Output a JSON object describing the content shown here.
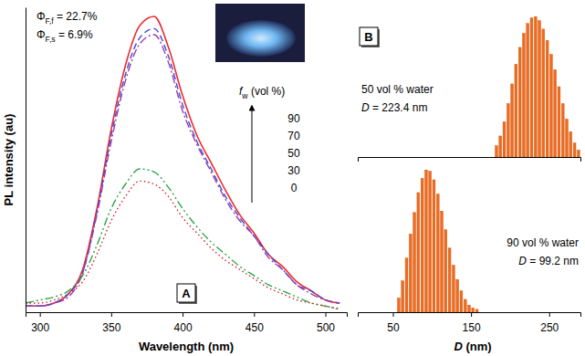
{
  "chart_data": [
    {
      "type": "line",
      "title": "A",
      "x_label": "Wavelength (nm)",
      "y_label": "PL intensity (au)",
      "x": [
        290,
        300,
        310,
        320,
        330,
        340,
        350,
        360,
        370,
        380,
        390,
        400,
        410,
        420,
        430,
        440,
        450,
        460,
        470,
        480,
        490,
        500,
        510
      ],
      "xlim": [
        290,
        515
      ],
      "xticks": [
        300,
        350,
        400,
        450,
        500
      ],
      "ylim": [
        0,
        1
      ],
      "tick_labels": "x",
      "legend": "right",
      "legend_title": {
        "main": "f",
        "sub": "w",
        "text": " (vol %)"
      },
      "annotations": [
        {
          "main": "Φ",
          "sub": "F,f",
          "text": " = 22.7%"
        },
        {
          "main": "Φ",
          "sub": "F,s",
          "text": " =  6.9%"
        }
      ],
      "series": [
        {
          "name": "90",
          "color": "#f0282d",
          "line_style": "solid",
          "values": [
            0.02,
            0.02,
            0.03,
            0.06,
            0.14,
            0.34,
            0.6,
            0.81,
            0.94,
            0.97,
            0.87,
            0.71,
            0.58,
            0.49,
            0.4,
            0.32,
            0.26,
            0.19,
            0.15,
            0.1,
            0.07,
            0.04,
            0.03
          ]
        },
        {
          "name": "70",
          "color": "#3a4fd0",
          "line_style": "dashed",
          "values": [
            0.02,
            0.02,
            0.03,
            0.06,
            0.13,
            0.33,
            0.58,
            0.78,
            0.9,
            0.93,
            0.84,
            0.68,
            0.56,
            0.47,
            0.38,
            0.31,
            0.25,
            0.19,
            0.14,
            0.09,
            0.07,
            0.04,
            0.03
          ]
        },
        {
          "name": "50",
          "color": "#9a3bb0",
          "line_style": "dashdot",
          "values": [
            0.02,
            0.02,
            0.03,
            0.05,
            0.13,
            0.32,
            0.56,
            0.76,
            0.88,
            0.91,
            0.82,
            0.66,
            0.55,
            0.46,
            0.37,
            0.3,
            0.25,
            0.18,
            0.14,
            0.09,
            0.06,
            0.04,
            0.03
          ]
        },
        {
          "name": "30",
          "color": "#2aa64a",
          "line_style": "dashdotdot",
          "values": [
            0.03,
            0.04,
            0.05,
            0.07,
            0.12,
            0.22,
            0.34,
            0.42,
            0.47,
            0.46,
            0.41,
            0.34,
            0.28,
            0.23,
            0.19,
            0.15,
            0.12,
            0.09,
            0.07,
            0.05,
            0.03,
            0.02,
            0.01
          ]
        },
        {
          "name": "0",
          "color": "#d4202a",
          "line_style": "dotted",
          "values": [
            0.03,
            0.03,
            0.04,
            0.06,
            0.1,
            0.19,
            0.3,
            0.38,
            0.43,
            0.42,
            0.38,
            0.31,
            0.26,
            0.21,
            0.17,
            0.14,
            0.11,
            0.08,
            0.06,
            0.04,
            0.03,
            0.02,
            0.01
          ]
        }
      ]
    },
    {
      "type": "histogram",
      "title": "B",
      "bins": [
        180,
        185,
        190,
        195,
        200,
        205,
        210,
        215,
        220,
        225,
        230,
        235,
        240,
        245,
        250,
        255,
        260,
        265,
        270,
        275,
        280,
        285,
        290
      ],
      "values": [
        8,
        15,
        25,
        38,
        52,
        66,
        78,
        88,
        95,
        99,
        100,
        97,
        91,
        83,
        73,
        62,
        50,
        38,
        27,
        18,
        10,
        5
      ],
      "color": "#f26a1b",
      "xlim": [
        5,
        290
      ],
      "xticks": [],
      "ylim": [
        0,
        100
      ],
      "tick_labels": false,
      "annotations": [
        "50 vol % water",
        "D = 223.4 nm"
      ]
    },
    {
      "type": "histogram",
      "x_label": "D (nm)",
      "bins": [
        55,
        60,
        65,
        70,
        75,
        80,
        85,
        90,
        95,
        100,
        105,
        110,
        115,
        120,
        125,
        130,
        135,
        140,
        145,
        150,
        155,
        160
      ],
      "values": [
        10,
        22,
        38,
        55,
        70,
        84,
        94,
        100,
        99,
        93,
        83,
        71,
        58,
        45,
        33,
        23,
        15,
        9,
        5,
        3,
        2
      ],
      "color": "#f26a1b",
      "xlim": [
        5,
        290
      ],
      "xticks": [
        50,
        150,
        250
      ],
      "ylim": [
        0,
        100
      ],
      "tick_labels": "x",
      "annotations": [
        "90 vol % water",
        "D = 99.2 nm"
      ]
    }
  ]
}
